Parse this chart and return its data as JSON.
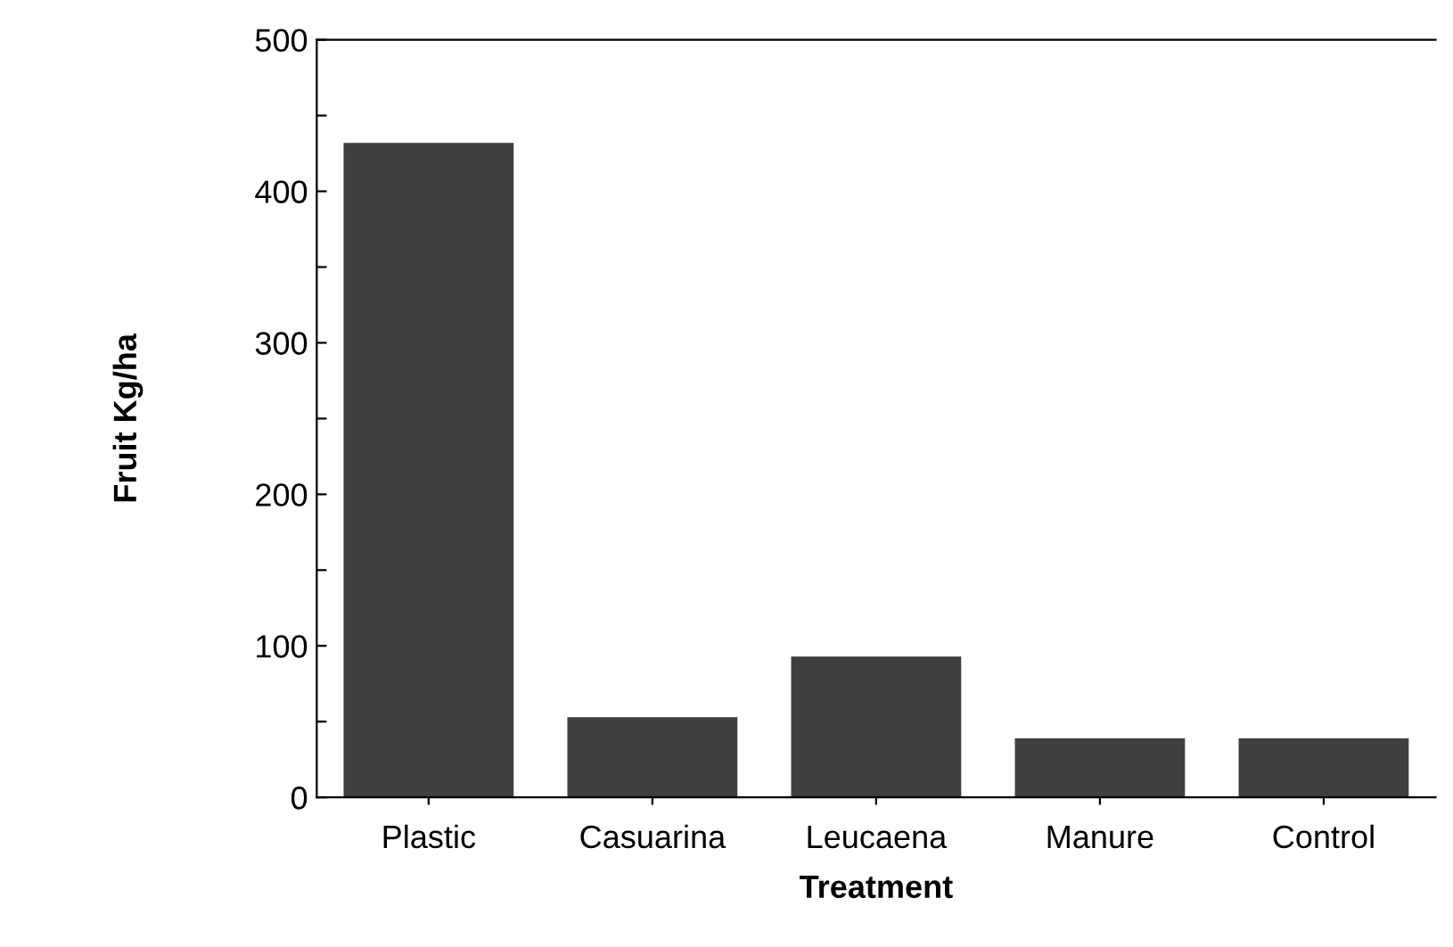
{
  "chart_data": {
    "type": "bar",
    "xlabel": "Treatment",
    "ylabel": "Fruit Kg/ha",
    "categories": [
      "Plastic",
      "Casuarina",
      "Leucaena",
      "Manure",
      "Control"
    ],
    "values": [
      432,
      53,
      93,
      39,
      39
    ],
    "color": "#3f3f3f",
    "ylim": [
      0,
      500
    ],
    "yticks": [
      0,
      {
        "value": 50,
        "label": null
      },
      100,
      {
        "value": 150,
        "label": null
      },
      200,
      {
        "value": 250,
        "label": null
      },
      300,
      {
        "value": 350,
        "label": null
      },
      400,
      {
        "value": 450,
        "label": null
      },
      500
    ],
    "grid": false,
    "legend": false
  }
}
